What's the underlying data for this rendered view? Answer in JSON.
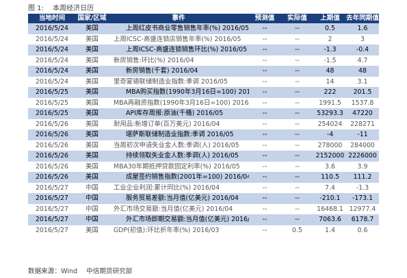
{
  "caption": {
    "number": "图 1:",
    "title": "本周经济日历"
  },
  "table": {
    "headers": [
      "当地时间",
      "国家/区域",
      "事件",
      "预测值",
      "实际值",
      "上期值",
      "去年同期值"
    ],
    "rows": [
      {
        "bold": true,
        "cells": [
          "2016/5/24",
          "美国",
          "上周红皮书商业零售销售年率(%) 2016/05",
          "--",
          "--",
          "0.5",
          "1.6"
        ]
      },
      {
        "bold": false,
        "cells": [
          "2016/5/24",
          "美国",
          "上周ICSC-高盛连锁店销售年率(%) 2016/05",
          "--",
          "--",
          "2",
          "3"
        ]
      },
      {
        "bold": true,
        "cells": [
          "2016/5/24",
          "美国",
          "上周ICSC-高盛连锁销售环比(%) 2016/05",
          "--",
          "--",
          "-1.3",
          "-0.4"
        ]
      },
      {
        "bold": false,
        "cells": [
          "2016/5/24",
          "美国",
          "新房销售:环比(%) 2016/04",
          "--",
          "--",
          "-1.5",
          "4.7"
        ]
      },
      {
        "bold": true,
        "cells": [
          "2016/5/24",
          "美国",
          "新房销售(千套) 2016/04",
          "--",
          "--",
          "48",
          "48"
        ]
      },
      {
        "bold": false,
        "cells": [
          "2016/5/24",
          "美国",
          "里奇蒙德联储制造业指数:季调 2016/05",
          "--",
          "--",
          "14",
          "3.1"
        ]
      },
      {
        "bold": true,
        "cells": [
          "2016/5/25",
          "美国",
          "MBA购买指数(1990年3月16日=100) 2016/05",
          "--",
          "--",
          "222",
          "201.5"
        ]
      },
      {
        "bold": false,
        "cells": [
          "2016/5/25",
          "美国",
          "MBA再融资指数(1990年3月16日=100) 2016/05",
          "--",
          "--",
          "1991.5",
          "1537.8"
        ]
      },
      {
        "bold": true,
        "cells": [
          "2016/5/25",
          "美国",
          "API库存周报:原油(千桶) 2016/05",
          "--",
          "--",
          "53293.3",
          "47220"
        ]
      },
      {
        "bold": false,
        "cells": [
          "2016/5/26",
          "美国",
          "耐用品:新增订单(百万美元) 2016/04",
          "--",
          "--",
          "254024",
          "228271"
        ]
      },
      {
        "bold": true,
        "cells": [
          "2016/5/26",
          "美国",
          "堪萨斯联储制造业指数:季调 2016/05",
          "--",
          "--",
          "-4",
          "-11"
        ]
      },
      {
        "bold": false,
        "cells": [
          "2016/5/26",
          "美国",
          "当周初次申请失业金人数:季调(人) 2016/05",
          "--",
          "--",
          "278000",
          "284000"
        ]
      },
      {
        "bold": true,
        "cells": [
          "2016/5/26",
          "美国",
          "持续领取失业金人数:季调(人) 2016/05",
          "--",
          "--",
          "2152000",
          "2226000"
        ]
      },
      {
        "bold": false,
        "cells": [
          "2016/5/26",
          "美国",
          "MBA30年期抵押贷款固定利率(%) 2016/05",
          "--",
          "--",
          "3.6",
          "3.9"
        ]
      },
      {
        "bold": true,
        "cells": [
          "2016/5/26",
          "美国",
          "成屋签约销售指数(2001年=100) 2016/04",
          "--",
          "--",
          "110.5",
          "111.2"
        ]
      },
      {
        "bold": false,
        "cells": [
          "2016/5/27",
          "中国",
          "工业企业利润:累计同比(%) 2016/04",
          "--",
          "--",
          "7.4",
          "-1.3"
        ]
      },
      {
        "bold": true,
        "cells": [
          "2016/5/27",
          "中国",
          "服务贸易差额:当月值(亿美元) 2016/04",
          "--",
          "--",
          "-210.1",
          "-173.1"
        ]
      },
      {
        "bold": false,
        "cells": [
          "2016/5/27",
          "中国",
          "外汇市场交易额:当月值(亿美元) 2016/04",
          "--",
          "--",
          "16468.1",
          "12977.4"
        ]
      },
      {
        "bold": true,
        "cells": [
          "2016/5/27",
          "中国",
          "外汇市场即期交易额:当月值(亿美元) 2016/04",
          "--",
          "--",
          "7063.6",
          "6178.7"
        ]
      },
      {
        "bold": false,
        "cells": [
          "2016/5/27",
          "美国",
          "GDP(初值):环比折年率(%) 2016/03",
          "--",
          "0.5",
          "1.4",
          "0.6"
        ]
      }
    ]
  },
  "footer": {
    "source": "数据来源：Wind",
    "org": "中信期货研究部"
  }
}
